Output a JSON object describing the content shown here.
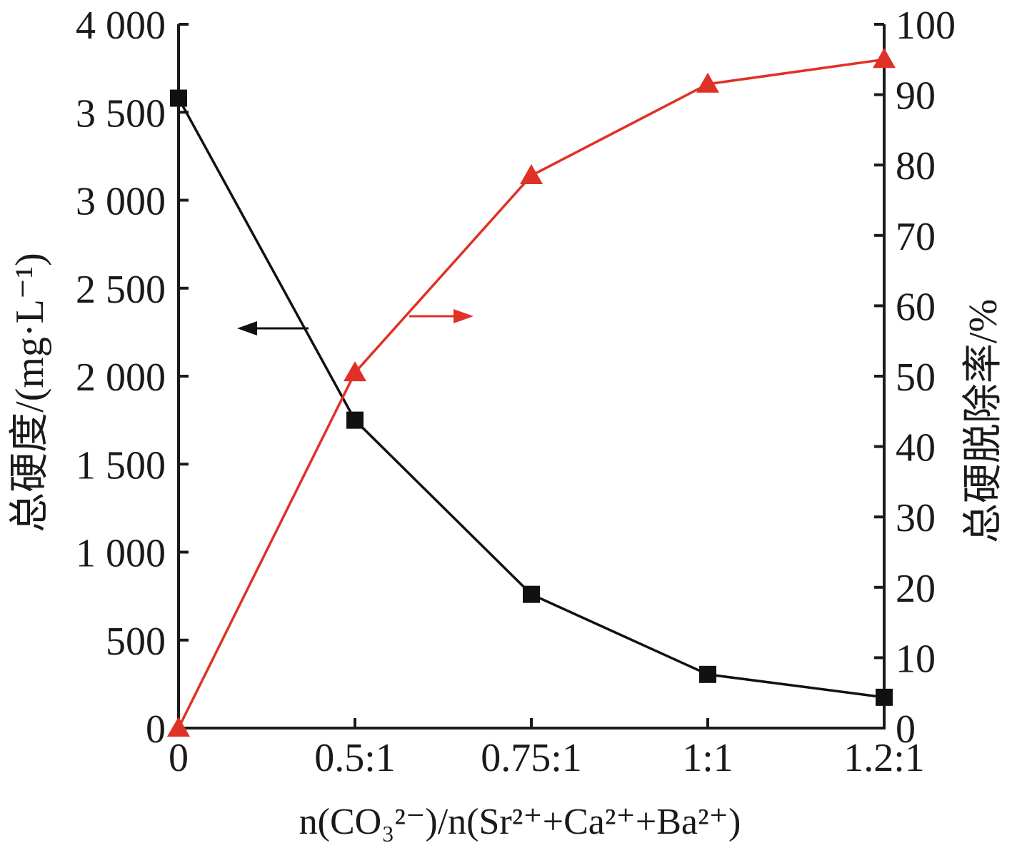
{
  "colors": {
    "axis": "#1a1a1a",
    "left_series": "#111111",
    "right_series": "#e03127"
  },
  "chart_data": {
    "type": "line",
    "categories": [
      "0",
      "0.5:1",
      "0.75:1",
      "1:1",
      "1.2:1"
    ],
    "xlabel": "n(CO₃²⁻)/n(Sr²⁺+Ca²⁺+Ba²⁺)",
    "left_axis": {
      "label": "总硬度/(mg·L⁻¹)",
      "ylim": [
        0,
        4000
      ],
      "ticks": [
        0,
        500,
        1000,
        1500,
        2000,
        2500,
        3000,
        3500,
        4000
      ],
      "tick_labels": [
        "0",
        "500",
        "1 000",
        "1 500",
        "2 000",
        "2 500",
        "3 000",
        "3 500",
        "4 000"
      ]
    },
    "right_axis": {
      "label": "总硬脱除率/%",
      "ylim": [
        0,
        100
      ],
      "ticks": [
        0,
        10,
        20,
        30,
        40,
        50,
        60,
        70,
        80,
        90,
        100
      ],
      "tick_labels": [
        "0",
        "10",
        "20",
        "30",
        "40",
        "50",
        "60",
        "70",
        "80",
        "90",
        "100"
      ]
    },
    "series": [
      {
        "axis": "left",
        "marker": "square",
        "values": [
          3580,
          1750,
          760,
          305,
          175
        ]
      },
      {
        "axis": "right",
        "marker": "triangle",
        "values": [
          0,
          50.5,
          78.5,
          91.5,
          95
        ]
      }
    ],
    "grid": false
  }
}
